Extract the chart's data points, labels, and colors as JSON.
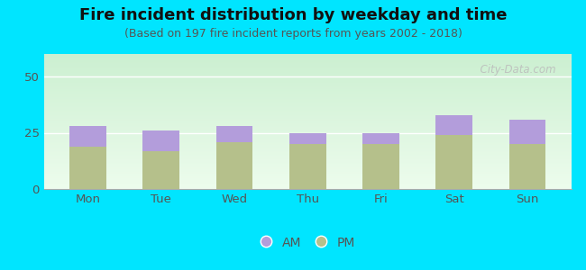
{
  "title": "Fire incident distribution by weekday and time",
  "subtitle": "(Based on 197 fire incident reports from years 2002 - 2018)",
  "days": [
    "Mon",
    "Tue",
    "Wed",
    "Thu",
    "Fri",
    "Sat",
    "Sun"
  ],
  "pm_values": [
    19,
    17,
    21,
    20,
    20,
    24,
    20
  ],
  "am_values": [
    9,
    9,
    7,
    5,
    5,
    9,
    11
  ],
  "am_color": "#b39ddb",
  "pm_color": "#b5c08b",
  "background_outer": "#00e5ff",
  "ylim": [
    0,
    60
  ],
  "yticks": [
    0,
    25,
    50
  ],
  "watermark": "  City-Data.com",
  "title_fontsize": 13,
  "subtitle_fontsize": 9,
  "tick_fontsize": 9.5,
  "legend_fontsize": 10
}
